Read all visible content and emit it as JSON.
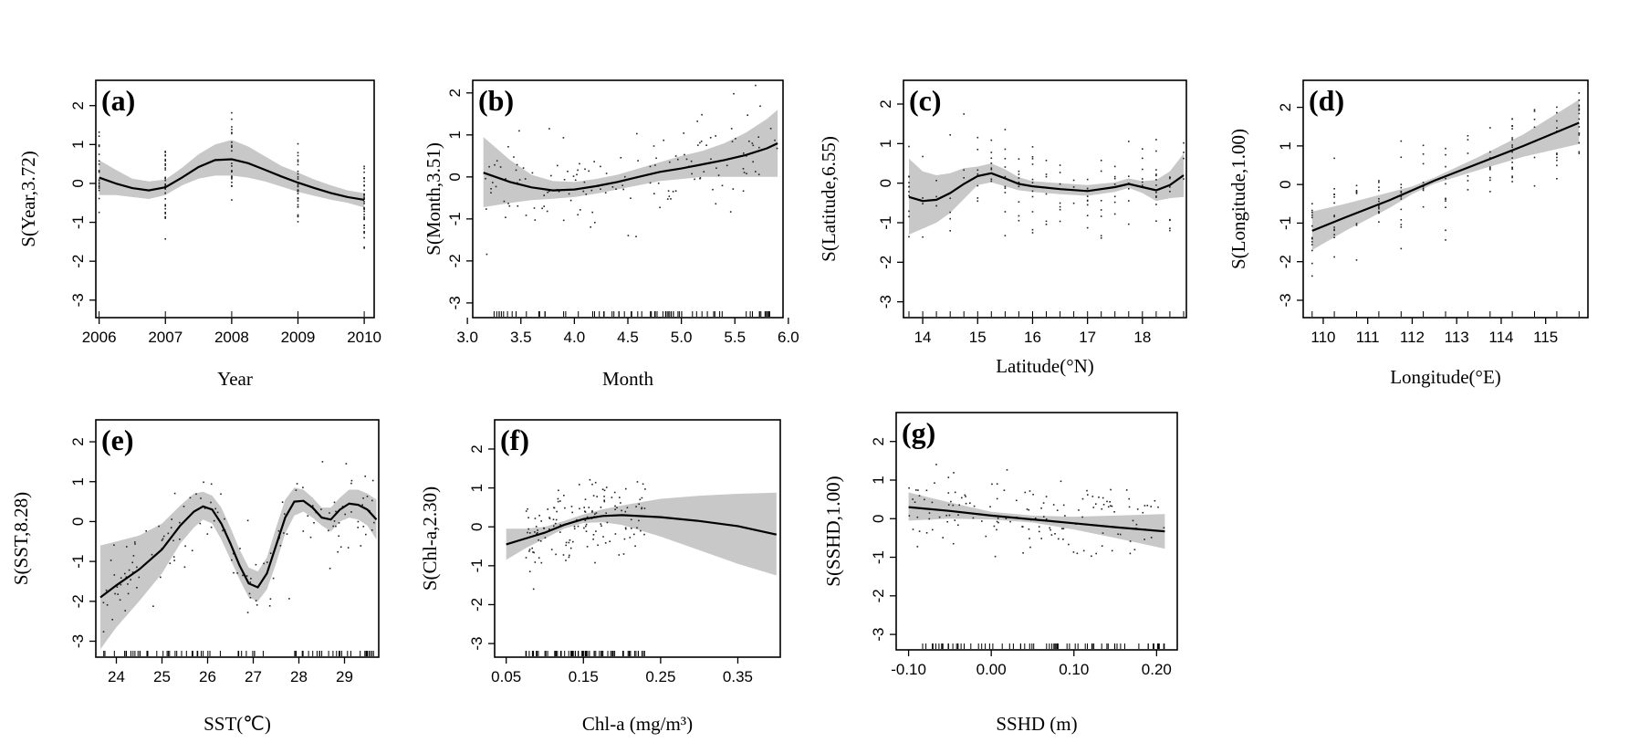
{
  "chart_data": [
    {
      "type": "line",
      "tag": "(a)",
      "xlabel": "Year",
      "ylabel": "S(Year,3.72)",
      "xlim": [
        2005.95,
        2010.15
      ],
      "ylim": [
        -3.45,
        2.65
      ],
      "xticks": [
        2006,
        2007,
        2008,
        2009,
        2010
      ],
      "xtick_labels": [
        "2006",
        "2007",
        "2008",
        "2009",
        "2010"
      ],
      "yticks": [
        -3,
        -2,
        -1,
        0,
        1,
        2
      ],
      "ytick_labels": [
        "-3",
        "-2",
        "-1",
        "0",
        "1",
        "2"
      ],
      "x": [
        2006,
        2006.25,
        2006.5,
        2006.75,
        2007,
        2007.25,
        2007.5,
        2007.75,
        2008,
        2008.25,
        2008.5,
        2008.75,
        2009,
        2009.25,
        2009.5,
        2009.75,
        2010
      ],
      "fit": [
        0.15,
        0.0,
        -0.12,
        -0.18,
        -0.1,
        0.15,
        0.42,
        0.6,
        0.62,
        0.52,
        0.35,
        0.18,
        0.02,
        -0.12,
        -0.25,
        -0.35,
        -0.42
      ],
      "lower": [
        -0.3,
        -0.3,
        -0.35,
        -0.4,
        -0.3,
        -0.05,
        0.12,
        0.2,
        0.2,
        0.15,
        0.05,
        -0.08,
        -0.22,
        -0.32,
        -0.42,
        -0.5,
        -0.62
      ],
      "upper": [
        0.6,
        0.35,
        0.12,
        0.05,
        0.1,
        0.4,
        0.75,
        1.0,
        1.12,
        0.95,
        0.7,
        0.45,
        0.28,
        0.1,
        -0.05,
        -0.18,
        -0.25
      ],
      "rug": [
        2006,
        2007,
        2008,
        2009,
        2010
      ]
    },
    {
      "type": "line",
      "tag": "(b)",
      "xlabel": "Month",
      "ylabel": "S(Month,3.51)",
      "xlim": [
        3.05,
        5.95
      ],
      "ylim": [
        -3.35,
        2.3
      ],
      "xticks": [
        3.0,
        3.5,
        4.0,
        4.5,
        5.0,
        5.5,
        6.0
      ],
      "xtick_labels": [
        "3.0",
        "3.5",
        "4.0",
        "4.5",
        "5.0",
        "5.5",
        "6.0"
      ],
      "yticks": [
        -3,
        -2,
        -1,
        0,
        1,
        2
      ],
      "ytick_labels": [
        "-3",
        "-2",
        "-1",
        "0",
        "1",
        "2"
      ],
      "x": [
        3.15,
        3.4,
        3.6,
        3.8,
        4.0,
        4.2,
        4.4,
        4.6,
        4.8,
        5.0,
        5.2,
        5.4,
        5.6,
        5.8,
        5.9
      ],
      "fit": [
        0.1,
        -0.12,
        -0.25,
        -0.32,
        -0.3,
        -0.22,
        -0.12,
        0.0,
        0.12,
        0.2,
        0.3,
        0.4,
        0.52,
        0.68,
        0.8
      ],
      "lower": [
        -0.72,
        -0.62,
        -0.55,
        -0.52,
        -0.48,
        -0.4,
        -0.3,
        -0.2,
        -0.1,
        -0.05,
        0.0,
        0.0,
        0.0,
        0.0,
        0.0
      ],
      "upper": [
        0.95,
        0.4,
        0.05,
        -0.1,
        -0.12,
        -0.05,
        0.05,
        0.2,
        0.35,
        0.5,
        0.62,
        0.8,
        1.05,
        1.38,
        1.6
      ],
      "rug_range": [
        3.15,
        5.9
      ]
    },
    {
      "type": "line",
      "tag": "(c)",
      "xlabel": "Latitude(°N)",
      "ylabel": "S(Latitude,6.55)",
      "xlim": [
        13.65,
        18.8
      ],
      "ylim": [
        -3.4,
        2.6
      ],
      "xticks": [
        14,
        15,
        16,
        17,
        18
      ],
      "xtick_labels": [
        "14",
        "15",
        "16",
        "17",
        "18"
      ],
      "yticks": [
        -3,
        -2,
        -1,
        0,
        1,
        2
      ],
      "ytick_labels": [
        "-3",
        "-2",
        "-1",
        "0",
        "1",
        "2"
      ],
      "x": [
        13.75,
        14.0,
        14.25,
        14.5,
        14.75,
        15.0,
        15.25,
        15.5,
        15.75,
        16.0,
        16.5,
        17.0,
        17.5,
        17.75,
        18.0,
        18.25,
        18.5,
        18.75
      ],
      "fit": [
        -0.35,
        -0.45,
        -0.42,
        -0.25,
        -0.02,
        0.18,
        0.25,
        0.12,
        -0.02,
        -0.08,
        -0.15,
        -0.2,
        -0.1,
        -0.02,
        -0.1,
        -0.18,
        -0.05,
        0.2
      ],
      "lower": [
        -1.3,
        -1.15,
        -1.0,
        -0.75,
        -0.4,
        -0.05,
        0.02,
        -0.08,
        -0.18,
        -0.22,
        -0.28,
        -0.32,
        -0.22,
        -0.12,
        -0.25,
        -0.45,
        -0.38,
        -0.35
      ],
      "upper": [
        0.62,
        0.3,
        0.2,
        0.25,
        0.38,
        0.42,
        0.5,
        0.35,
        0.15,
        0.05,
        0.0,
        -0.05,
        0.02,
        0.12,
        0.05,
        0.08,
        0.3,
        0.75
      ],
      "rug": [
        13.75,
        14.0,
        14.25,
        14.5,
        14.75,
        15.0,
        15.25,
        15.5,
        15.75,
        16.0,
        16.25,
        16.5,
        16.75,
        17.0,
        17.25,
        17.5,
        17.75,
        18.0,
        18.25,
        18.5,
        18.75
      ]
    },
    {
      "type": "line",
      "tag": "(d)",
      "xlabel": "Longitude(°E)",
      "ylabel": "S(Longitude,1.00)",
      "xlim": [
        109.55,
        115.95
      ],
      "ylim": [
        -3.45,
        2.7
      ],
      "xticks": [
        110,
        111,
        112,
        113,
        114,
        115
      ],
      "xtick_labels": [
        "110",
        "111",
        "112",
        "113",
        "114",
        "115"
      ],
      "yticks": [
        -3,
        -2,
        -1,
        0,
        1,
        2
      ],
      "ytick_labels": [
        "-3",
        "-2",
        "-1",
        "0",
        "1",
        "2"
      ],
      "x": [
        109.75,
        110.5,
        111.5,
        112.0,
        112.5,
        113.5,
        114.5,
        115.75
      ],
      "fit": [
        -1.2,
        -0.85,
        -0.4,
        -0.15,
        0.1,
        0.55,
        1.0,
        1.6
      ],
      "lower": [
        -1.7,
        -1.2,
        -0.6,
        -0.25,
        0.02,
        0.38,
        0.72,
        1.05
      ],
      "upper": [
        -0.7,
        -0.5,
        -0.2,
        -0.05,
        0.18,
        0.72,
        1.3,
        2.2
      ],
      "rug": [
        109.75,
        110.25,
        110.75,
        111.25,
        111.75,
        112.25,
        112.75,
        113.25,
        113.75,
        114.25,
        114.75,
        115.25,
        115.75
      ]
    },
    {
      "type": "line",
      "tag": "(e)",
      "xlabel": "SST(℃)",
      "ylabel": "S(SST,8.28)",
      "xlim": [
        23.55,
        29.75
      ],
      "ylim": [
        -3.4,
        2.55
      ],
      "xticks": [
        24,
        25,
        26,
        27,
        28,
        29
      ],
      "xtick_labels": [
        "24",
        "25",
        "26",
        "27",
        "28",
        "29"
      ],
      "yticks": [
        -3,
        -2,
        -1,
        0,
        1,
        2
      ],
      "ytick_labels": [
        "-3",
        "-2",
        "-1",
        "0",
        "1",
        "2"
      ],
      "x": [
        23.65,
        24.0,
        24.5,
        25.0,
        25.4,
        25.7,
        25.9,
        26.1,
        26.3,
        26.5,
        26.7,
        26.9,
        27.1,
        27.3,
        27.5,
        27.7,
        27.9,
        28.1,
        28.3,
        28.5,
        28.7,
        28.9,
        29.1,
        29.3,
        29.5,
        29.7
      ],
      "fit": [
        -1.9,
        -1.6,
        -1.2,
        -0.7,
        -0.1,
        0.25,
        0.38,
        0.3,
        -0.05,
        -0.55,
        -1.1,
        -1.55,
        -1.65,
        -1.3,
        -0.6,
        0.1,
        0.5,
        0.52,
        0.35,
        0.1,
        0.05,
        0.3,
        0.45,
        0.42,
        0.3,
        0.05
      ],
      "lower": [
        -3.2,
        -2.65,
        -2.0,
        -1.3,
        -0.55,
        -0.15,
        0.05,
        -0.05,
        -0.45,
        -0.95,
        -1.45,
        -1.9,
        -2.0,
        -1.7,
        -1.05,
        -0.3,
        0.15,
        0.25,
        0.1,
        -0.1,
        -0.25,
        0.0,
        0.1,
        0.05,
        -0.1,
        -0.45
      ],
      "upper": [
        -0.6,
        -0.5,
        -0.35,
        -0.05,
        0.4,
        0.7,
        0.75,
        0.65,
        0.35,
        -0.15,
        -0.7,
        -1.15,
        -1.25,
        -0.9,
        -0.15,
        0.55,
        0.85,
        0.8,
        0.6,
        0.35,
        0.35,
        0.6,
        0.8,
        0.8,
        0.7,
        0.55
      ],
      "rug_range": [
        23.7,
        29.7
      ]
    },
    {
      "type": "line",
      "tag": "(f)",
      "xlabel": "Chl-a (mg/m³)",
      "ylabel": "S(Chl-a,2.30)",
      "xlim": [
        0.035,
        0.405
      ],
      "ylim": [
        -3.35,
        2.75
      ],
      "xticks": [
        0.05,
        0.15,
        0.25,
        0.35
      ],
      "xtick_labels": [
        "0.05",
        "0.15",
        "0.25",
        "0.35"
      ],
      "yticks": [
        -3,
        -2,
        -1,
        0,
        1,
        2
      ],
      "ytick_labels": [
        "-3",
        "-2",
        "-1",
        "0",
        "1",
        "2"
      ],
      "x": [
        0.05,
        0.075,
        0.1,
        0.125,
        0.15,
        0.175,
        0.2,
        0.25,
        0.3,
        0.35,
        0.4
      ],
      "fit": [
        -0.45,
        -0.3,
        -0.15,
        0.05,
        0.2,
        0.28,
        0.3,
        0.25,
        0.15,
        0.02,
        -0.2
      ],
      "lower": [
        -0.85,
        -0.55,
        -0.3,
        -0.05,
        0.1,
        0.12,
        0.05,
        -0.25,
        -0.6,
        -0.95,
        -1.25
      ],
      "upper": [
        -0.05,
        -0.05,
        0.0,
        0.15,
        0.32,
        0.45,
        0.55,
        0.72,
        0.8,
        0.85,
        0.88
      ],
      "rug_range": [
        0.075,
        0.23
      ]
    },
    {
      "type": "line",
      "tag": "(g)",
      "xlabel": "SSHD (m)",
      "ylabel": "S(SSHD,1.00)",
      "xlim": [
        -0.115,
        0.225
      ],
      "ylim": [
        -3.4,
        2.75
      ],
      "xticks": [
        -0.1,
        0.0,
        0.1,
        0.2
      ],
      "xtick_labels": [
        "-0.10",
        "0.00",
        "0.10",
        "0.20"
      ],
      "yticks": [
        -3,
        -2,
        -1,
        0,
        1,
        2
      ],
      "ytick_labels": [
        "-3",
        "-2",
        "-1",
        "0",
        "1",
        "2"
      ],
      "x": [
        -0.1,
        -0.05,
        0.0,
        0.05,
        0.1,
        0.15,
        0.21
      ],
      "fit": [
        0.3,
        0.2,
        0.08,
        -0.02,
        -0.12,
        -0.22,
        -0.33
      ],
      "lower": [
        -0.05,
        0.0,
        -0.02,
        -0.1,
        -0.28,
        -0.5,
        -0.78
      ],
      "upper": [
        0.68,
        0.42,
        0.18,
        0.08,
        0.05,
        0.08,
        0.12
      ],
      "rug_range": [
        -0.1,
        0.21
      ]
    }
  ]
}
